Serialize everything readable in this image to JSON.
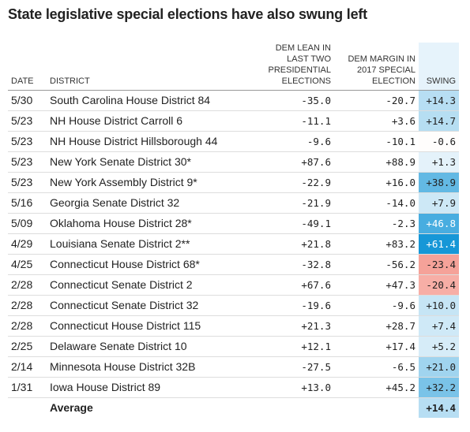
{
  "title": "State legislative special elections have also swung left",
  "table": {
    "headers": [
      "DATE",
      "DISTRICT",
      "DEM LEAN IN LAST TWO PRESIDENTIAL ELECTIONS",
      "DEM MARGIN IN 2017 SPECIAL ELECTION",
      "SWING"
    ],
    "rows": [
      [
        "5/30",
        "South Carolina House District 84",
        "-35.0",
        "-20.7",
        "+14.3"
      ],
      [
        "5/23",
        "NH House District Carroll 6",
        "-11.1",
        "+3.6",
        "+14.7"
      ],
      [
        "5/23",
        "NH House District Hillsborough 44",
        "-9.6",
        "-10.1",
        "-0.6"
      ],
      [
        "5/23",
        "New York Senate District 30*",
        "+87.6",
        "+88.9",
        "+1.3"
      ],
      [
        "5/23",
        "New York Assembly District 9*",
        "-22.9",
        "+16.0",
        "+38.9"
      ],
      [
        "5/16",
        "Georgia Senate District 32",
        "-21.9",
        "-14.0",
        "+7.9"
      ],
      [
        "5/09",
        "Oklahoma House District 28*",
        "-49.1",
        "-2.3",
        "+46.8"
      ],
      [
        "4/29",
        "Louisiana Senate District 2**",
        "+21.8",
        "+83.2",
        "+61.4"
      ],
      [
        "4/25",
        "Connecticut House District 68*",
        "-32.8",
        "-56.2",
        "-23.4"
      ],
      [
        "2/28",
        "Connecticut Senate District 2",
        "+67.6",
        "+47.3",
        "-20.4"
      ],
      [
        "2/28",
        "Connecticut Senate District 32",
        "-19.6",
        "-9.6",
        "+10.0"
      ],
      [
        "2/28",
        "Connecticut House District 115",
        "+21.3",
        "+28.7",
        "+7.4"
      ],
      [
        "2/25",
        "Delaware Senate District 10",
        "+12.1",
        "+17.4",
        "+5.2"
      ],
      [
        "2/14",
        "Minnesota House District 32B",
        "-27.5",
        "-6.5",
        "+21.0"
      ],
      [
        "1/31",
        "Iowa House District 89",
        "+13.0",
        "+45.2",
        "+32.2"
      ]
    ],
    "average": {
      "label": "Average",
      "swing": "+14.4"
    }
  }
}
